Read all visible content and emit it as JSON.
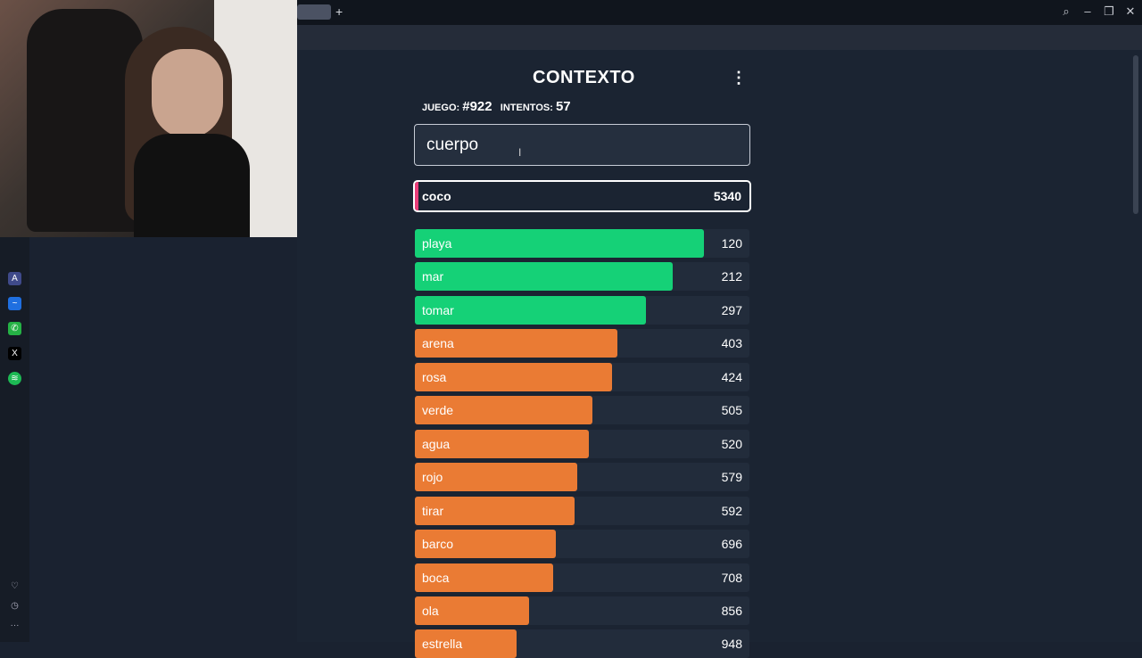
{
  "browser": {
    "icons": [
      "search-icon",
      "minimize-icon",
      "restore-icon",
      "close-icon"
    ],
    "toolbar_icons": [
      "zoom-icon",
      "edit-icon",
      "camera-icon",
      "shield-icon",
      "extension-icon",
      "play-icon",
      "heart-icon",
      "download-icon",
      "menu-icon",
      "profile-icon",
      "settings-icon"
    ],
    "sidebar_icons": [
      "aria-icon",
      "messenger-icon",
      "whatsapp-icon",
      "x-icon",
      "spotify-icon",
      "heart-icon",
      "history-icon",
      "more-icon"
    ]
  },
  "game": {
    "title": "CONTEXTO",
    "game_label": "JUEGO:",
    "game_number": "#922",
    "attempts_label": "INTENTOS:",
    "attempts": "57",
    "input_value": "cuerpo",
    "last_guess": {
      "word": "coco",
      "rank": "5340"
    },
    "colors": {
      "green": "#15d177",
      "orange": "#ea7b34",
      "pink": "#e83c78"
    },
    "guesses": [
      {
        "word": "playa",
        "rank": "120",
        "fill": 0.865,
        "color": "#15d177"
      },
      {
        "word": "mar",
        "rank": "212",
        "fill": 0.77,
        "color": "#15d177"
      },
      {
        "word": "tomar",
        "rank": "297",
        "fill": 0.69,
        "color": "#15d177"
      },
      {
        "word": "arena",
        "rank": "403",
        "fill": 0.605,
        "color": "#ea7b34"
      },
      {
        "word": "rosa",
        "rank": "424",
        "fill": 0.59,
        "color": "#ea7b34"
      },
      {
        "word": "verde",
        "rank": "505",
        "fill": 0.53,
        "color": "#ea7b34"
      },
      {
        "word": "agua",
        "rank": "520",
        "fill": 0.52,
        "color": "#ea7b34"
      },
      {
        "word": "rojo",
        "rank": "579",
        "fill": 0.485,
        "color": "#ea7b34"
      },
      {
        "word": "tirar",
        "rank": "592",
        "fill": 0.478,
        "color": "#ea7b34"
      },
      {
        "word": "barco",
        "rank": "696",
        "fill": 0.42,
        "color": "#ea7b34"
      },
      {
        "word": "boca",
        "rank": "708",
        "fill": 0.413,
        "color": "#ea7b34"
      },
      {
        "word": "ola",
        "rank": "856",
        "fill": 0.34,
        "color": "#ea7b34"
      },
      {
        "word": "estrella",
        "rank": "948",
        "fill": 0.305,
        "color": "#ea7b34"
      }
    ]
  }
}
